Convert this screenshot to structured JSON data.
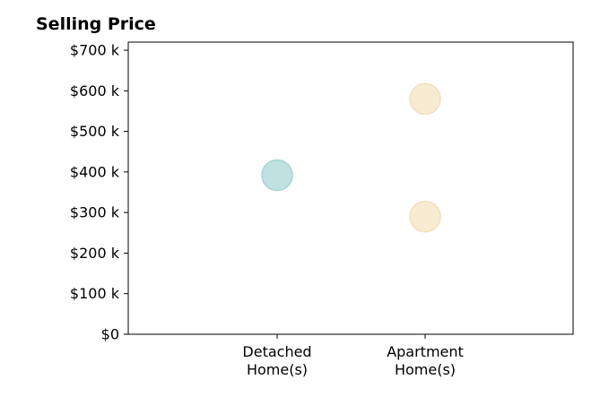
{
  "chart_data": {
    "type": "scatter",
    "title": "Selling Price",
    "xlabel": "",
    "ylabel": "",
    "categories": [
      [
        "Detached",
        "Home(s)"
      ],
      [
        "Apartment",
        "Home(s)"
      ]
    ],
    "ylim": [
      0,
      720000
    ],
    "yticks": [
      {
        "value": 0,
        "label": "$0"
      },
      {
        "value": 100000,
        "label": "$100 k"
      },
      {
        "value": 200000,
        "label": "$200 k"
      },
      {
        "value": 300000,
        "label": "$300 k"
      },
      {
        "value": 400000,
        "label": "$400 k"
      },
      {
        "value": 500000,
        "label": "$500 k"
      },
      {
        "value": 600000,
        "label": "$600 k"
      },
      {
        "value": 700000,
        "label": "$700 k"
      }
    ],
    "points": [
      {
        "category": 0,
        "value": 392000,
        "color": "#bfe1e0",
        "stroke": "#a9d4d3"
      },
      {
        "category": 1,
        "value": 580000,
        "color": "#f8ebd2",
        "stroke": "#f2dfbd"
      },
      {
        "category": 1,
        "value": 290000,
        "color": "#f8ebd2",
        "stroke": "#f2dfbd"
      }
    ],
    "grid": false,
    "legend": "none"
  }
}
